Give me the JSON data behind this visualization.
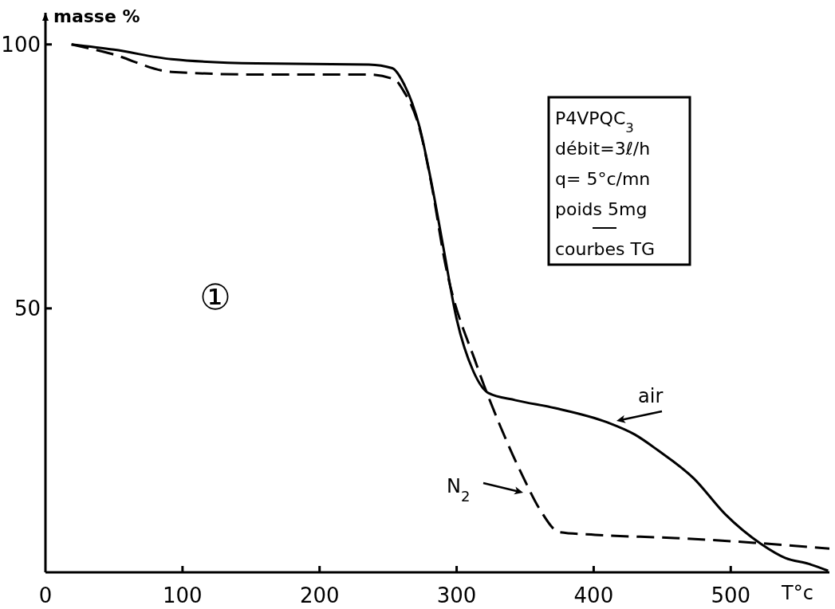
{
  "chart_data": {
    "type": "line",
    "xlabel": "T°c",
    "ylabel": "masse %",
    "xlim": [
      0,
      572
    ],
    "ylim": [
      0,
      106
    ],
    "xticks": [
      0,
      100,
      200,
      300,
      400,
      500
    ],
    "yticks": [
      50,
      100
    ],
    "grid": false,
    "marker": "none",
    "series": [
      {
        "name": "air",
        "color": "#000000",
        "line_style": "solid",
        "x": [
          19,
          50,
          92,
          154,
          236,
          253,
          261,
          273,
          282,
          290,
          300,
          312,
          323,
          343,
          372,
          410,
          430,
          447,
          473,
          496,
          522,
          540,
          557,
          571
        ],
        "values": [
          100,
          99,
          97.2,
          96.4,
          96.2,
          95.5,
          92.8,
          84.3,
          73.3,
          62,
          48,
          38.2,
          34,
          32.6,
          31.1,
          28.4,
          26.1,
          23.1,
          17.8,
          11,
          5.4,
          2.7,
          1.6,
          0.3
        ]
      },
      {
        "name": "N$_{2}$",
        "color": "#000000",
        "line_style": "dashed",
        "x": [
          19,
          47,
          92,
          154,
          236,
          255,
          261,
          273,
          282,
          291,
          315,
          332,
          349,
          361,
          375,
          401,
          459,
          517,
          572
        ],
        "values": [
          100,
          98.3,
          94.8,
          94.3,
          94.3,
          93.3,
          91.3,
          84,
          73,
          59.4,
          39,
          27.6,
          17.8,
          11.8,
          7.6,
          7.1,
          6.5,
          5.6,
          4.5
        ]
      }
    ],
    "annotations": [
      "①",
      "P4VPQC$_{3}$",
      "débit=3ℓ/h",
      "q= 5°c/mn",
      "poids 5mg",
      "courbes TG"
    ]
  }
}
